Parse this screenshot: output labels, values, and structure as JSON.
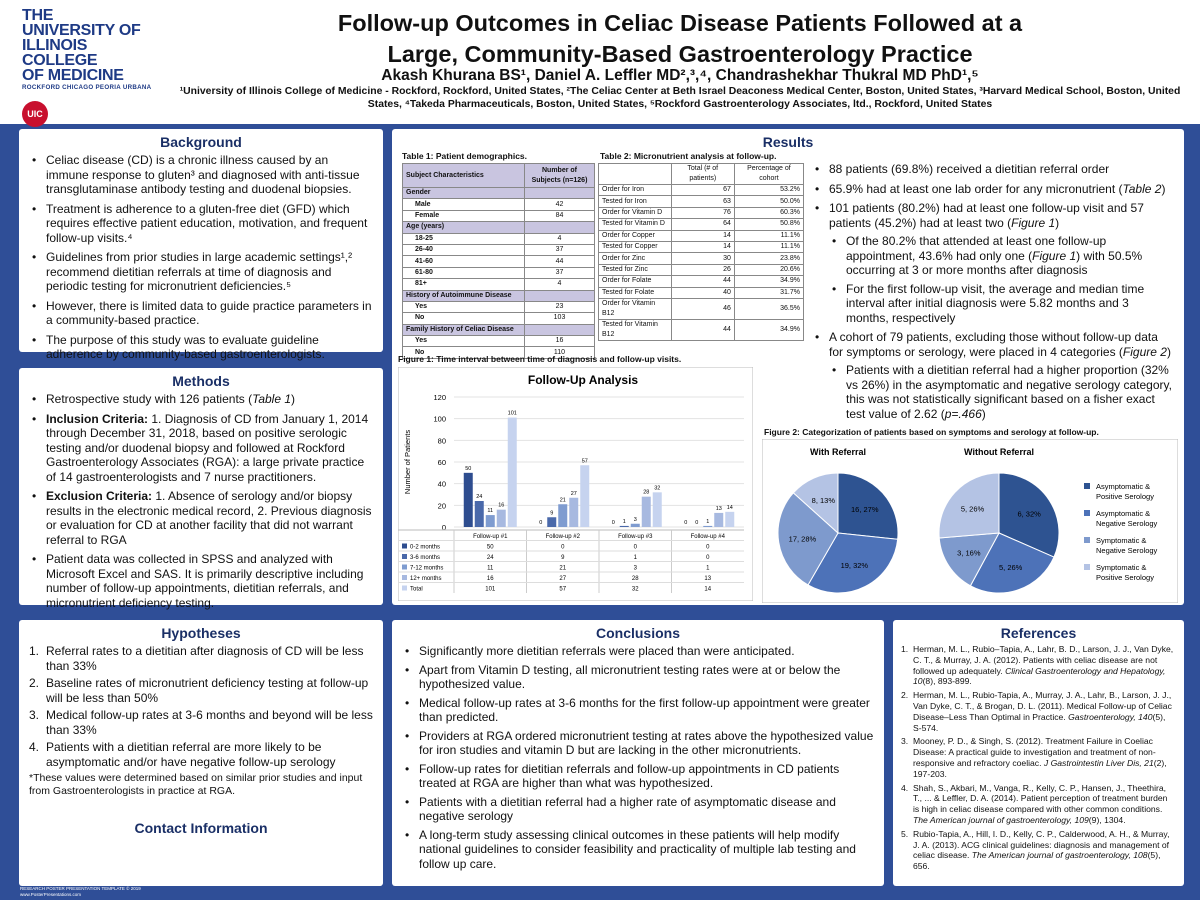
{
  "header": {
    "logo_lines": [
      "THE",
      "UNIVERSITY OF",
      "ILLINOIS",
      "COLLEGE",
      "OF MEDICINE"
    ],
    "logo_sub": "ROCKFORD  CHICAGO  PEORIA  URBANA",
    "logo_badge": "UIC",
    "title_line1": "Follow-up Outcomes in Celiac Disease Patients Followed at a",
    "title_line2": "Large, Community-Based Gastroenterology Practice",
    "authors": "Akash Khurana BS¹, Daniel A. Leffler MD²,³,⁴, Chandrashekhar Thukral MD PhD¹,⁵",
    "affiliations": "¹University of Illinois College of Medicine - Rockford, Rockford, United States, ²The Celiac Center at Beth Israel Deaconess Medical Center, Boston, United States, ³Harvard Medical School, Boston, United States, ⁴Takeda Pharmaceuticals, Boston, United States, ⁵Rockford Gastroenterology Associates, ltd., Rockford, United States"
  },
  "background": {
    "heading": "Background",
    "bullets": [
      "Celiac disease (CD) is a chronic illness caused by an immune response to gluten³ and diagnosed with anti-tissue transglutaminase antibody testing and duodenal biopsies.",
      "Treatment is adherence to a gluten-free diet (GFD) which requires effective patient education, motivation, and frequent follow-up visits.⁴",
      "Guidelines from prior studies in large academic settings¹,² recommend dietitian referrals at time of diagnosis and periodic testing for micronutrient deficiencies.⁵",
      "However, there is limited data to guide practice parameters in a community-based practice.",
      "The purpose of this study was to evaluate guideline adherence by community-based gastroenterologists."
    ]
  },
  "methods": {
    "heading": "Methods",
    "b1": "Retrospective study with 126 patients (",
    "b1_em": "Table 1",
    "b1_end": ")",
    "b2_label": "Inclusion Criteria:",
    "b2": " 1. Diagnosis of CD from January 1, 2014 through December 31, 2018, based on positive serologic testing and/or duodenal biopsy and followed at Rockford Gastroenterology Associates (RGA): a large private practice of 14 gastroenterologists and 7 nurse practitioners.",
    "b3_label": "Exclusion Criteria:",
    "b3": " 1. Absence of serology and/or biopsy results in the electronic medical record, 2. Previous diagnosis or evaluation for CD at another facility that did not warrant referral to RGA",
    "b4": "Patient data was collected in SPSS and analyzed with Microsoft Excel and SAS. It is primarily descriptive including number of follow-up appointments, dietitian referrals, and micronutrient deficiency testing."
  },
  "hypotheses": {
    "heading": "Hypotheses",
    "items": [
      {
        "n": "1.",
        "text": "Referral rates to a dietitian after diagnosis of CD will be less than 33%"
      },
      {
        "n": "2.",
        "text": "Baseline rates of micronutrient deficiency testing at follow-up will be less than 50%"
      },
      {
        "n": "3.",
        "text": "Medical follow-up rates at 3-6 months and beyond will be less than 33%"
      },
      {
        "n": "4.",
        "text": "Patients with a dietitian referral are more likely to be asymptomatic and/or have negative follow-up serology"
      }
    ],
    "note": "*These values were determined based on similar prior studies and input from Gastroenterologists in practice at RGA.",
    "contact_heading": "Contact Information"
  },
  "results": {
    "heading": "Results",
    "table1": {
      "caption": "Table 1: Patient demographics.",
      "head_left": "Subject Characteristics",
      "head_right": "Number of Subjects (n=126)",
      "rows": [
        {
          "l": "Gender",
          "v": "",
          "type": "hd"
        },
        {
          "l": "Male",
          "v": "42",
          "type": "ind"
        },
        {
          "l": "Female",
          "v": "84",
          "type": "ind"
        },
        {
          "l": "Age (years)",
          "v": "",
          "type": "hd"
        },
        {
          "l": "18-25",
          "v": "4",
          "type": "ind"
        },
        {
          "l": "26-40",
          "v": "37",
          "type": "ind"
        },
        {
          "l": "41-60",
          "v": "44",
          "type": "ind"
        },
        {
          "l": "61-80",
          "v": "37",
          "type": "ind"
        },
        {
          "l": "81+",
          "v": "4",
          "type": "ind"
        },
        {
          "l": "History of Autoimmune Disease",
          "v": "",
          "type": "hd"
        },
        {
          "l": "Yes",
          "v": "23",
          "type": "ind"
        },
        {
          "l": "No",
          "v": "103",
          "type": "ind"
        },
        {
          "l": "Family History of Celiac Disease",
          "v": "",
          "type": "hd"
        },
        {
          "l": "Yes",
          "v": "16",
          "type": "ind"
        },
        {
          "l": "No",
          "v": "110",
          "type": "ind"
        }
      ]
    },
    "table2": {
      "caption": "Table 2: Micronutrient analysis at follow-up.",
      "head": [
        "",
        "Total (# of patients)",
        "Percentage of cohort"
      ],
      "rows": [
        [
          "Order for Iron",
          "67",
          "53.2%"
        ],
        [
          "Tested for Iron",
          "63",
          "50.0%"
        ],
        [
          "Order for Vitamin D",
          "76",
          "60.3%"
        ],
        [
          "Tested for Vitamin D",
          "64",
          "50.8%"
        ],
        [
          "Order for Copper",
          "14",
          "11.1%"
        ],
        [
          "Tested for Copper",
          "14",
          "11.1%"
        ],
        [
          "Order for Zinc",
          "30",
          "23.8%"
        ],
        [
          "Tested for Zinc",
          "26",
          "20.6%"
        ],
        [
          "Order for Folate",
          "44",
          "34.9%"
        ],
        [
          "Tested for Folate",
          "40",
          "31.7%"
        ],
        [
          "Order for Vitamin B12",
          "46",
          "36.5%"
        ],
        [
          "Tested for Vitamin B12",
          "44",
          "34.9%"
        ]
      ]
    },
    "bullets": {
      "r1": "88 patients (69.8%) received a dietitian referral order",
      "r2": "65.9% had at least one lab order for any micronutrient (",
      "r2_em": "Table 2",
      "r2_end": ")",
      "r3": "101 patients (80.2%) had at least one follow-up visit and 57 patients (45.2%) had at least two (",
      "r3_em": "Figure 1",
      "r3_end": ")",
      "r3a": "Of the 80.2% that attended at least one follow-up appointment, 43.6% had only one (",
      "r3a_em": "Figure 1",
      "r3a_end": ") with 50.5% occurring at 3 or more months after diagnosis",
      "r3b": "For the first follow-up visit, the average and median time interval after initial diagnosis were 5.82 months and 3 months, respectively",
      "r4": "A cohort of 79 patients, excluding those without follow-up data for symptoms or serology, were placed in 4 categories (",
      "r4_em": "Figure 2",
      "r4_end": ")",
      "r4a": "Patients with a dietitian referral had a higher proportion (32% vs 26%) in the asymptomatic and negative serology category, this was not statistically significant based on a fisher exact test value of 2.62 (",
      "r4a_em": "p=.466",
      "r4a_end": ")"
    },
    "fig1_caption": "Figure 1: Time interval between time of diagnosis and follow-up visits.",
    "fig2_caption": "Figure 2: Categorization of patients based on symptoms and serology at follow-up."
  },
  "chart_data": [
    {
      "type": "bar",
      "title": "Follow-Up Analysis",
      "ylabel": "Number of Patients",
      "xlabel": "",
      "ylim": [
        0,
        120
      ],
      "yticks": [
        0,
        20,
        40,
        60,
        80,
        100,
        120
      ],
      "categories": [
        "Follow-up #1",
        "Follow-up #2",
        "Follow-up #3",
        "Follow-up #4"
      ],
      "series": [
        {
          "name": "0-2 months",
          "color": "#2e4d8f",
          "values": [
            50,
            0,
            0,
            0
          ]
        },
        {
          "name": "3-6 months",
          "color": "#4a69aa",
          "values": [
            24,
            9,
            1,
            0
          ]
        },
        {
          "name": "7-12 months",
          "color": "#7f9cd0",
          "values": [
            11,
            21,
            3,
            1
          ]
        },
        {
          "name": "12+ months",
          "color": "#a7b9e0",
          "values": [
            16,
            27,
            28,
            13
          ]
        },
        {
          "name": "Total",
          "color": "#c6d3ef",
          "values": [
            101,
            57,
            32,
            14
          ]
        }
      ],
      "grid": true,
      "legend": "data-table below chart"
    },
    {
      "type": "pie",
      "title": "With Referral",
      "slices": [
        {
          "name": "Asymptomatic & Positive Serology",
          "value": 16,
          "label": "16, 27%",
          "color": "#2e5391"
        },
        {
          "name": "Asymptomatic & Negative Serology",
          "value": 19,
          "label": "19, 32%",
          "color": "#4d72b8"
        },
        {
          "name": "Symptomatic & Negative Serology",
          "value": 17,
          "label": "17, 28%",
          "color": "#7e9acd"
        },
        {
          "name": "Symptomatic & Positive Serology",
          "value": 8,
          "label": "8, 13%",
          "color": "#b4c3e4"
        }
      ]
    },
    {
      "type": "pie",
      "title": "Without Referral",
      "slices": [
        {
          "name": "Asymptomatic & Positive Serology",
          "value": 6,
          "label": "6, 32%",
          "color": "#2e5391"
        },
        {
          "name": "Asymptomatic & Negative Serology",
          "value": 5,
          "label": "5, 26%",
          "color": "#4d72b8"
        },
        {
          "name": "Symptomatic & Negative Serology",
          "value": 3,
          "label": "3, 16%",
          "color": "#7e9acd"
        },
        {
          "name": "Symptomatic & Positive Serology",
          "value": 5,
          "label": "5, 26%",
          "color": "#b4c3e4"
        }
      ],
      "legend": "right"
    }
  ],
  "conclusions": {
    "heading": "Conclusions",
    "bullets": [
      "Significantly more dietitian referrals were placed than were anticipated.",
      "Apart from Vitamin D testing, all micronutrient testing rates were at or below the hypothesized value.",
      "Medical follow-up rates at 3-6 months for the first follow-up appointment were greater than predicted.",
      "Providers at RGA ordered micronutrient testing at rates above the hypothesized value for iron studies and vitamin D but are lacking in the other micronutrients.",
      "Follow-up rates for dietitian referrals and follow-up appointments in CD patients treated at RGA are higher than what was hypothesized.",
      "Patients with a dietitian referral had a higher rate of asymptomatic disease and negative serology",
      "A long-term study assessing clinical outcomes in these patients will help modify national guidelines to consider feasibility and practicality of multiple lab testing and follow up care."
    ]
  },
  "references": {
    "heading": "References",
    "items": [
      {
        "n": "1.",
        "a": "Herman, M. L., Rubio–Tapia, A., Lahr, B. D., Larson, J. J., Van Dyke, C. T., & Murray, J. A. (2012). Patients with celiac disease are not followed up adequately. ",
        "j": "Clinical Gastroenterology and Hepatology, 10",
        "b": "(8), 893-899."
      },
      {
        "n": "2.",
        "a": "Herman, M. L., Rubio-Tapia, A., Murray, J. A., Lahr, B., Larson, J. J., Van Dyke, C. T., & Brogan, D. L. (2011). Medical Follow-up of Celiac Disease–Less Than Optimal in Practice. ",
        "j": "Gastroenterology, 140",
        "b": "(5), S-574."
      },
      {
        "n": "3.",
        "a": "Mooney, P. D., & Singh, S. (2012). Treatment Failure in Coeliac Disease: A practical guide to investigation and treatment of non-responsive and refractory coeliac. ",
        "j": "J Gastrointestin Liver Dis, 21",
        "b": "(2), 197-203."
      },
      {
        "n": "4.",
        "a": "Shah, S., Akbari, M., Vanga, R., Kelly, C. P., Hansen, J., Theethira, T., ... & Leffler, D. A. (2014). Patient perception of treatment burden is high in celiac disease compared with other common conditions. ",
        "j": "The American journal of gastroenterology, 109",
        "b": "(9), 1304."
      },
      {
        "n": "5.",
        "a": "Rubio-Tapia, A., Hill, I. D., Kelly, C. P., Calderwood, A. H., & Murray, J. A. (2013). ACG clinical guidelines: diagnosis and management of celiac disease. ",
        "j": "The American journal of gastroenterology, 108",
        "b": "(5), 656."
      }
    ]
  },
  "footer": {
    "line1": "RESEARCH POSTER PRESENTATION TEMPLATE © 2019",
    "line2": "www.PosterPresentations.com"
  }
}
